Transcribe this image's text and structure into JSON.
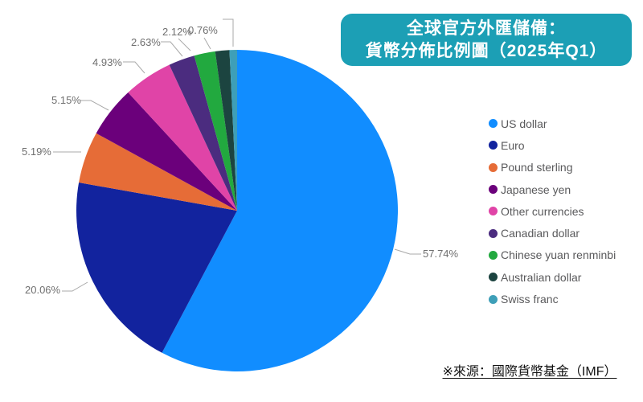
{
  "title": {
    "line1": "全球官方外匯儲備：",
    "line2": "貨幣分佈比例圖（2025年Q1）",
    "bg_color": "#1C9FB5",
    "text_color": "#FFFFFF"
  },
  "source_note": "※來源：國際貨幣基金（IMF）",
  "chart_data": {
    "type": "pie",
    "title": "全球官方外匯儲備：貨幣分佈比例圖（2025年Q1）",
    "unit": "percent",
    "start_angle_deg": 0,
    "direction": "clockwise",
    "legend_position": "right",
    "label_color": "#6f6f6f",
    "leader_line_color": "#a9a9a9",
    "slices": [
      {
        "label": "US dollar",
        "value": 57.74,
        "display_label": "57.74%",
        "label_visible": true,
        "color": "#118DFF"
      },
      {
        "label": "Euro",
        "value": 20.06,
        "display_label": "20.06%",
        "label_visible": true,
        "color": "#12239E"
      },
      {
        "label": "Pound sterling",
        "value": 5.19,
        "display_label": "5.19%",
        "label_visible": true,
        "color": "#E66C37"
      },
      {
        "label": "Japanese yen",
        "value": 5.15,
        "display_label": "5.15%",
        "label_visible": true,
        "color": "#6B007B"
      },
      {
        "label": "Other currencies",
        "value": 4.93,
        "display_label": "4.93%",
        "label_visible": true,
        "color": "#E044A7"
      },
      {
        "label": "Canadian dollar",
        "value": 2.63,
        "display_label": "2.63%",
        "label_visible": true,
        "color": "#4B2C7F"
      },
      {
        "label": "Chinese yuan renminbi",
        "value": 2.12,
        "display_label": "2.12%",
        "label_visible": true,
        "color": "#22A93F"
      },
      {
        "label": "Australian dollar",
        "value": 1.42,
        "display_label": "",
        "label_visible": false,
        "color": "#1C4440"
      },
      {
        "label": "Swiss franc",
        "value": 0.76,
        "display_label": "0.76%",
        "label_visible": true,
        "color": "#3E9FB8"
      }
    ]
  }
}
